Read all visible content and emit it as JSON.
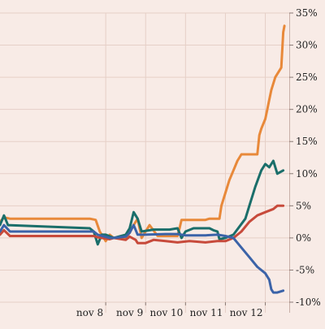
{
  "chart_data": {
    "type": "line",
    "title": "",
    "xlabel": "",
    "ylabel": "",
    "x_ticks": [
      {
        "label": "nov 8",
        "x": 8
      },
      {
        "label": "nov 9",
        "x": 9
      },
      {
        "label": "nov 10",
        "x": 10
      },
      {
        "label": "nov 11",
        "x": 11
      },
      {
        "label": "nov 12",
        "x": 12
      }
    ],
    "xlim": [
      5.35,
      12.6
    ],
    "ylim": [
      -10,
      35
    ],
    "y_ticks": [
      {
        "label": "35%",
        "y": 35
      },
      {
        "label": "30%",
        "y": 30
      },
      {
        "label": "25%",
        "y": 25
      },
      {
        "label": "20%",
        "y": 20
      },
      {
        "label": "15%",
        "y": 15
      },
      {
        "label": "10%",
        "y": 10
      },
      {
        "label": "5%",
        "y": 5
      },
      {
        "label": "0%",
        "y": 0
      },
      {
        "label": "-5%",
        "y": -5
      },
      {
        "label": "-10%",
        "y": -10
      }
    ],
    "grid": true,
    "series": [
      {
        "color": "#e8893a",
        "points": [
          [
            5.35,
            2.5
          ],
          [
            5.45,
            3.2
          ],
          [
            5.6,
            3.0
          ],
          [
            7.6,
            3.0
          ],
          [
            7.75,
            2.8
          ],
          [
            7.85,
            1.0
          ],
          [
            8.0,
            -0.5
          ],
          [
            8.1,
            0.5
          ],
          [
            8.2,
            0.0
          ],
          [
            8.5,
            0.0
          ],
          [
            8.6,
            0.8
          ],
          [
            8.7,
            2.0
          ],
          [
            8.8,
            3.0
          ],
          [
            8.9,
            0.0
          ],
          [
            9.0,
            1.0
          ],
          [
            9.1,
            2.0
          ],
          [
            9.3,
            0.3
          ],
          [
            9.6,
            0.3
          ],
          [
            9.8,
            0.3
          ],
          [
            9.85,
            1.5
          ],
          [
            9.9,
            2.8
          ],
          [
            10.5,
            2.8
          ],
          [
            10.6,
            3.0
          ],
          [
            10.85,
            3.0
          ],
          [
            10.9,
            5.0
          ],
          [
            11.0,
            7.0
          ],
          [
            11.1,
            9.0
          ],
          [
            11.2,
            10.5
          ],
          [
            11.3,
            12.0
          ],
          [
            11.4,
            13.0
          ],
          [
            11.8,
            13.0
          ],
          [
            11.85,
            16.0
          ],
          [
            11.9,
            17.0
          ],
          [
            12.0,
            18.5
          ],
          [
            12.05,
            20.0
          ],
          [
            12.1,
            21.5
          ],
          [
            12.15,
            23.0
          ],
          [
            12.25,
            25.0
          ],
          [
            12.35,
            26.0
          ],
          [
            12.4,
            26.5
          ],
          [
            12.45,
            32.0
          ],
          [
            12.48,
            33.0
          ]
        ]
      },
      {
        "color": "#1a6e6a",
        "points": [
          [
            5.35,
            2.0
          ],
          [
            5.45,
            3.5
          ],
          [
            5.55,
            2.0
          ],
          [
            7.6,
            1.5
          ],
          [
            7.7,
            1.0
          ],
          [
            7.8,
            -1.0
          ],
          [
            7.9,
            0.5
          ],
          [
            8.0,
            0.5
          ],
          [
            8.2,
            0.0
          ],
          [
            8.5,
            0.5
          ],
          [
            8.6,
            1.5
          ],
          [
            8.7,
            4.0
          ],
          [
            8.8,
            3.0
          ],
          [
            8.9,
            1.0
          ],
          [
            9.2,
            1.3
          ],
          [
            9.6,
            1.3
          ],
          [
            9.8,
            1.5
          ],
          [
            9.9,
            0.0
          ],
          [
            10.0,
            1.0
          ],
          [
            10.2,
            1.5
          ],
          [
            10.6,
            1.5
          ],
          [
            10.7,
            1.2
          ],
          [
            10.8,
            1.0
          ],
          [
            10.85,
            -0.2
          ],
          [
            11.0,
            0.0
          ],
          [
            11.2,
            0.5
          ],
          [
            11.5,
            3.0
          ],
          [
            11.6,
            5.0
          ],
          [
            11.75,
            8.0
          ],
          [
            11.9,
            10.5
          ],
          [
            12.0,
            11.5
          ],
          [
            12.1,
            11.0
          ],
          [
            12.2,
            12.0
          ],
          [
            12.3,
            10.0
          ],
          [
            12.45,
            10.5
          ]
        ]
      },
      {
        "color": "#c74a3b",
        "points": [
          [
            5.35,
            0.5
          ],
          [
            5.45,
            1.2
          ],
          [
            5.6,
            0.3
          ],
          [
            7.7,
            0.3
          ],
          [
            7.8,
            0.1
          ],
          [
            8.1,
            -0.2
          ],
          [
            8.2,
            0.0
          ],
          [
            8.5,
            -0.3
          ],
          [
            8.6,
            0.2
          ],
          [
            8.75,
            -0.3
          ],
          [
            8.8,
            -0.8
          ],
          [
            9.0,
            -0.8
          ],
          [
            9.2,
            -0.3
          ],
          [
            9.5,
            -0.5
          ],
          [
            9.8,
            -0.7
          ],
          [
            10.1,
            -0.5
          ],
          [
            10.5,
            -0.7
          ],
          [
            10.8,
            -0.5
          ],
          [
            11.0,
            -0.5
          ],
          [
            11.2,
            0.0
          ],
          [
            11.4,
            1.0
          ],
          [
            11.6,
            2.5
          ],
          [
            11.8,
            3.5
          ],
          [
            12.0,
            4.0
          ],
          [
            12.2,
            4.5
          ],
          [
            12.3,
            5.0
          ],
          [
            12.45,
            5.0
          ]
        ]
      },
      {
        "color": "#3b63a8",
        "points": [
          [
            5.35,
            1.0
          ],
          [
            5.45,
            2.0
          ],
          [
            5.6,
            1.0
          ],
          [
            7.7,
            1.0
          ],
          [
            7.8,
            0.5
          ],
          [
            8.1,
            0.0
          ],
          [
            8.2,
            0.0
          ],
          [
            8.5,
            0.2
          ],
          [
            8.6,
            0.8
          ],
          [
            8.7,
            2.0
          ],
          [
            8.8,
            0.5
          ],
          [
            9.0,
            0.5
          ],
          [
            9.5,
            0.6
          ],
          [
            9.8,
            0.6
          ],
          [
            10.0,
            0.4
          ],
          [
            10.5,
            0.4
          ],
          [
            10.8,
            0.5
          ],
          [
            11.0,
            0.3
          ],
          [
            11.2,
            0.0
          ],
          [
            11.4,
            -1.5
          ],
          [
            11.6,
            -3.0
          ],
          [
            11.8,
            -4.5
          ],
          [
            12.0,
            -5.5
          ],
          [
            12.1,
            -6.5
          ],
          [
            12.15,
            -8.0
          ],
          [
            12.2,
            -8.5
          ],
          [
            12.3,
            -8.5
          ],
          [
            12.45,
            -8.2
          ]
        ]
      }
    ]
  }
}
